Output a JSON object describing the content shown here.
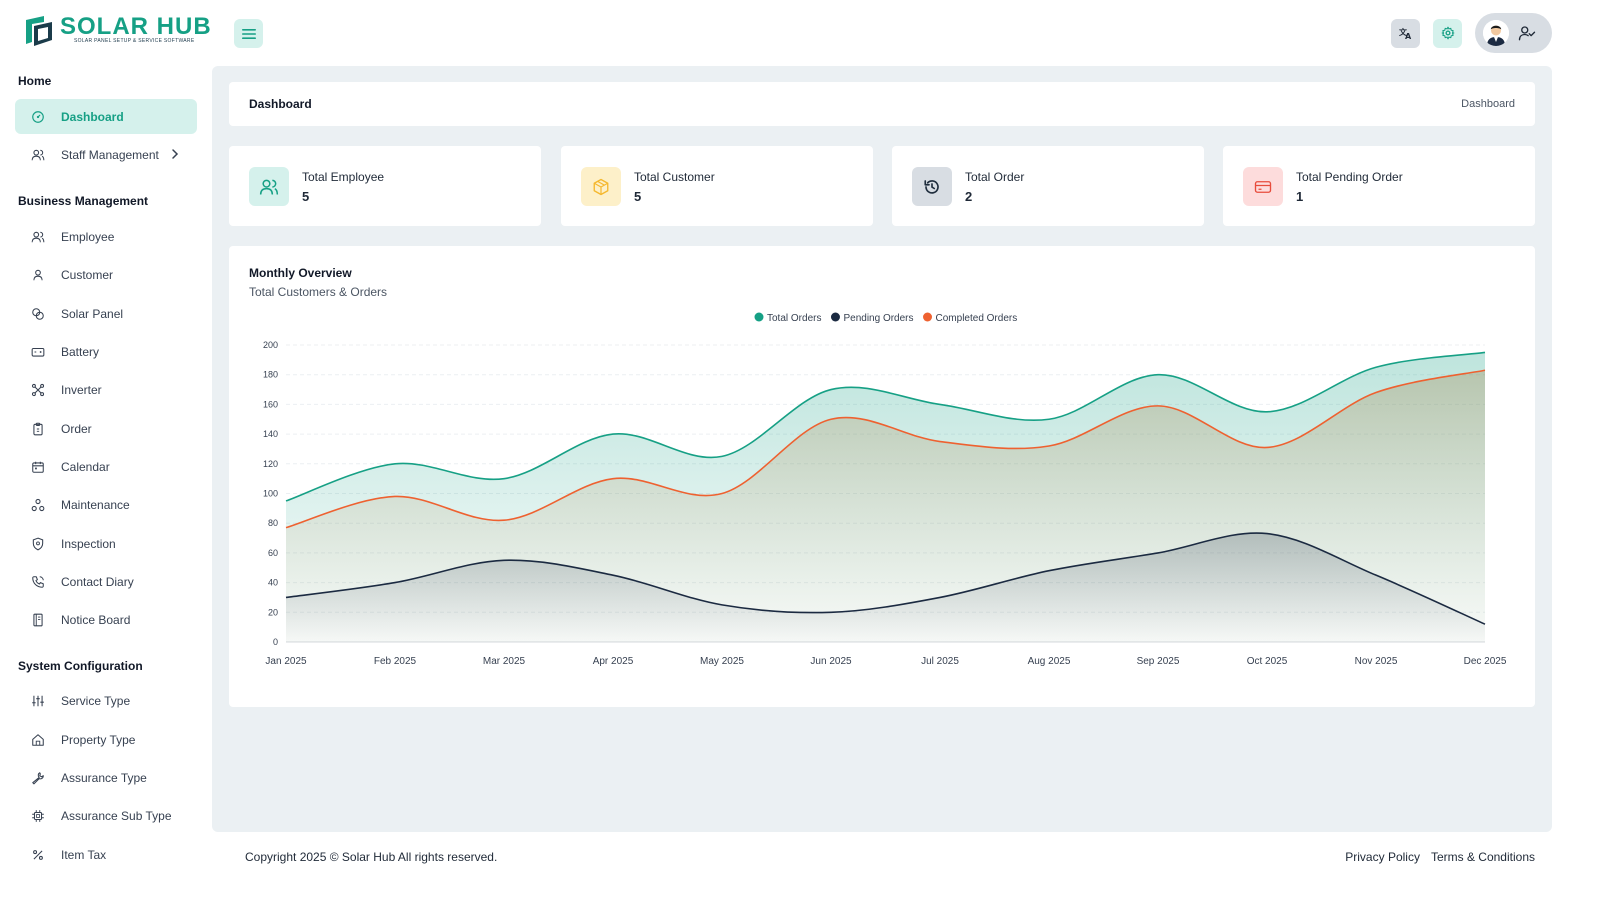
{
  "app": {
    "logo_title": "SOLAR HUB",
    "logo_subtitle": "SOLAR PANEL SETUP & SERVICE SOFTWARE",
    "brand_color": "#16a085"
  },
  "header": {
    "icons": [
      "menu-icon",
      "translate-icon",
      "gear-icon",
      "user-check-icon"
    ]
  },
  "sidebar": {
    "sections": [
      {
        "title": "Home"
      },
      {
        "title": "Business Management"
      },
      {
        "title": "System Configuration"
      }
    ],
    "home_items": [
      {
        "label": "Dashboard",
        "icon": "dashboard-icon",
        "active": true
      },
      {
        "label": "Staff Management",
        "icon": "users-icon",
        "has_submenu": true
      }
    ],
    "business_items": [
      {
        "label": "Employee",
        "icon": "users-icon"
      },
      {
        "label": "Customer",
        "icon": "user-icon"
      },
      {
        "label": "Solar Panel",
        "icon": "solar-panel-icon"
      },
      {
        "label": "Battery",
        "icon": "battery-icon"
      },
      {
        "label": "Inverter",
        "icon": "inverter-icon"
      },
      {
        "label": "Order",
        "icon": "order-icon"
      },
      {
        "label": "Calendar",
        "icon": "calendar-icon"
      },
      {
        "label": "Maintenance",
        "icon": "maintenance-icon"
      },
      {
        "label": "Inspection",
        "icon": "shield-icon"
      },
      {
        "label": "Contact Diary",
        "icon": "phone-icon"
      },
      {
        "label": "Notice Board",
        "icon": "notice-icon"
      }
    ],
    "config_items": [
      {
        "label": "Service Type",
        "icon": "sliders-icon"
      },
      {
        "label": "Property Type",
        "icon": "home-icon"
      },
      {
        "label": "Assurance Type",
        "icon": "wrench-icon"
      },
      {
        "label": "Assurance Sub Type",
        "icon": "chip-icon"
      },
      {
        "label": "Item Tax",
        "icon": "percent-icon"
      }
    ]
  },
  "breadcrumb": {
    "title": "Dashboard",
    "current": "Dashboard"
  },
  "stats": [
    {
      "label": "Total Employee",
      "value": "5",
      "icon": "users-icon",
      "color": "#16a085",
      "bg": "#d5f1ec"
    },
    {
      "label": "Total Customer",
      "value": "5",
      "icon": "box-icon",
      "color": "#f5b82e",
      "bg": "#fdf0c9"
    },
    {
      "label": "Total Order",
      "value": "2",
      "icon": "history-icon",
      "color": "#1f2d3d",
      "bg": "#d8dde3"
    },
    {
      "label": "Total Pending Order",
      "value": "1",
      "icon": "card-icon",
      "color": "#e74c3c",
      "bg": "#fddcdc"
    }
  ],
  "chart_title": "Monthly Overview",
  "chart_subtitle": "Total Customers & Orders",
  "chart_data": {
    "type": "area",
    "title": "Monthly Overview",
    "subtitle": "Total Customers & Orders",
    "categories": [
      "Jan 2025",
      "Feb 2025",
      "Mar 2025",
      "Apr 2025",
      "May 2025",
      "Jun 2025",
      "Jul 2025",
      "Aug 2025",
      "Sep 2025",
      "Oct 2025",
      "Nov 2025",
      "Dec 2025"
    ],
    "series": [
      {
        "name": "Total Orders",
        "color": "#16a085",
        "values": [
          95,
          120,
          110,
          140,
          125,
          170,
          160,
          150,
          180,
          155,
          185,
          195
        ]
      },
      {
        "name": "Pending Orders",
        "color": "#1b2a41",
        "values": [
          30,
          40,
          55,
          45,
          25,
          20,
          30,
          48,
          60,
          73,
          45,
          12
        ]
      },
      {
        "name": "Completed Orders",
        "color": "#ee6130",
        "values": [
          77,
          98,
          82,
          110,
          100,
          150,
          135,
          132,
          159,
          131,
          168,
          183
        ]
      }
    ],
    "y_ticks": [
      "0",
      "20",
      "40",
      "60",
      "80",
      "100",
      "120",
      "140",
      "160",
      "180",
      "200"
    ],
    "ylim": [
      0,
      200
    ],
    "legend": "top-center",
    "grid": true
  },
  "footer": {
    "copyright": "Copyright 2025 © Solar Hub All rights reserved.",
    "privacy": "Privacy Policy",
    "terms": "Terms & Conditions"
  }
}
